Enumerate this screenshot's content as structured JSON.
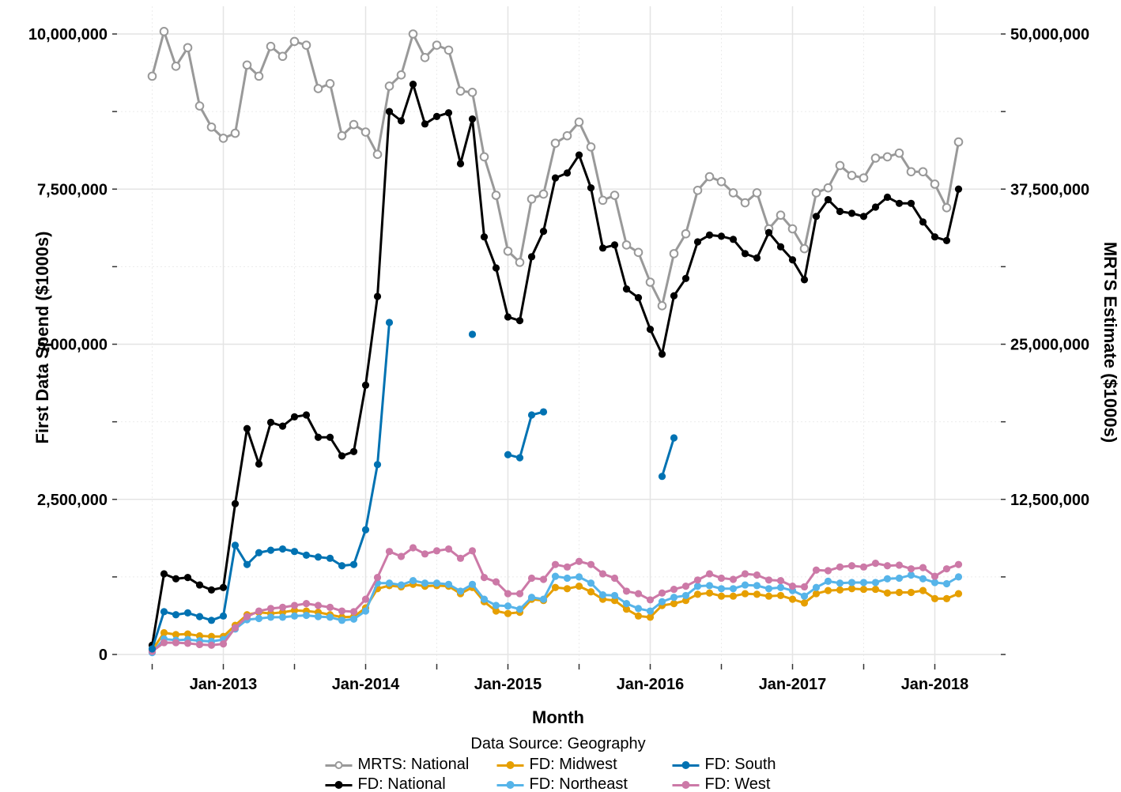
{
  "chart_data": {
    "type": "line",
    "title": "",
    "unit_note": "series values are in millions of the axis units shown ($1000s); MRTS series is read on the right axis, FD series on the left axis",
    "x": {
      "label": "Month",
      "tick_labels": [
        "Jan-2013",
        "Jan-2014",
        "Jan-2015",
        "Jan-2016",
        "Jan-2017",
        "Jan-2018"
      ],
      "tick_month_indices": [
        6,
        18,
        30,
        42,
        54,
        66
      ],
      "minor_tick_month_indices": [
        0,
        12,
        24,
        36,
        48,
        60
      ],
      "months": [
        "Jul-2012",
        "Aug-2012",
        "Sep-2012",
        "Oct-2012",
        "Nov-2012",
        "Dec-2012",
        "Jan-2013",
        "Feb-2013",
        "Mar-2013",
        "Apr-2013",
        "May-2013",
        "Jun-2013",
        "Jul-2013",
        "Aug-2013",
        "Sep-2013",
        "Oct-2013",
        "Nov-2013",
        "Dec-2013",
        "Jan-2014",
        "Feb-2014",
        "Mar-2014",
        "Apr-2014",
        "May-2014",
        "Jun-2014",
        "Jul-2014",
        "Aug-2014",
        "Sep-2014",
        "Oct-2014",
        "Nov-2014",
        "Dec-2014",
        "Jan-2015",
        "Feb-2015",
        "Mar-2015",
        "Apr-2015",
        "May-2015",
        "Jun-2015",
        "Jul-2015",
        "Aug-2015",
        "Sep-2015",
        "Oct-2015",
        "Nov-2015",
        "Dec-2015",
        "Jan-2016",
        "Feb-2016",
        "Mar-2016",
        "Apr-2016",
        "May-2016",
        "Jun-2016",
        "Jul-2016",
        "Aug-2016",
        "Sep-2016",
        "Oct-2016",
        "Nov-2016",
        "Dec-2016",
        "Jan-2017",
        "Feb-2017",
        "Mar-2017",
        "Apr-2017",
        "May-2017",
        "Jun-2017",
        "Jul-2017",
        "Aug-2017",
        "Sep-2017",
        "Oct-2017",
        "Nov-2017",
        "Dec-2017",
        "Jan-2018",
        "Feb-2018",
        "Mar-2018"
      ]
    },
    "y_left": {
      "label": "First Data Spend ($1000s)",
      "tick_labels": [
        "0",
        "2,500,000",
        "5,000,000",
        "7,500,000",
        "10,000,000"
      ],
      "tick_values_millions": [
        0,
        2.5,
        5,
        7.5,
        10
      ],
      "minor_tick_values_millions": [
        1.25,
        3.75,
        6.25,
        8.75
      ],
      "range_millions": [
        0,
        10.45
      ]
    },
    "y_right": {
      "label": "MRTS Estimate ($1000s)",
      "tick_labels": [
        "12,500,000",
        "25,000,000",
        "37,500,000",
        "50,000,000"
      ],
      "tick_values_millions": [
        12.5,
        25,
        37.5,
        50
      ],
      "scale_vs_left": 5
    },
    "grid": true,
    "legend": {
      "title": "Data Source: Geography",
      "position": "bottom",
      "order": [
        "MRTS: National",
        "FD: Midwest",
        "FD: South",
        "FD: National",
        "FD: Northeast",
        "FD: West"
      ]
    },
    "series": [
      {
        "name": "MRTS: National",
        "axis": "right",
        "color": "#999999",
        "marker": "open-circle",
        "values_millions": [
          46.6,
          50.2,
          47.4,
          48.9,
          44.2,
          42.5,
          41.6,
          42.0,
          47.5,
          46.6,
          49.0,
          48.2,
          49.4,
          49.1,
          45.6,
          46.0,
          41.8,
          42.7,
          42.1,
          40.3,
          45.8,
          46.7,
          50.0,
          48.1,
          49.1,
          48.7,
          45.4,
          45.3,
          40.1,
          37.0,
          32.5,
          31.6,
          36.7,
          37.1,
          41.2,
          41.8,
          42.9,
          40.9,
          36.6,
          37.0,
          33.0,
          32.4,
          30.0,
          28.1,
          32.3,
          33.9,
          37.4,
          38.5,
          38.1,
          37.2,
          36.4,
          37.2,
          34.3,
          35.4,
          34.3,
          32.7,
          37.2,
          37.6,
          39.4,
          38.6,
          38.4,
          40.0,
          40.1,
          40.4,
          38.9,
          38.9,
          37.9,
          36.0,
          41.3
        ]
      },
      {
        "name": "FD: National",
        "axis": "left",
        "color": "#000000",
        "marker": "filled-circle",
        "values_millions": [
          0.15,
          1.3,
          1.22,
          1.24,
          1.12,
          1.04,
          1.08,
          2.43,
          3.64,
          3.07,
          3.74,
          3.68,
          3.83,
          3.86,
          3.5,
          3.5,
          3.2,
          3.27,
          4.34,
          5.77,
          8.75,
          8.6,
          9.19,
          8.55,
          8.67,
          8.73,
          7.91,
          8.63,
          6.73,
          6.23,
          5.44,
          5.38,
          6.41,
          6.82,
          7.68,
          7.76,
          8.05,
          7.52,
          6.55,
          6.6,
          5.89,
          5.75,
          5.24,
          4.84,
          5.78,
          6.06,
          6.65,
          6.76,
          6.74,
          6.69,
          6.46,
          6.39,
          6.8,
          6.57,
          6.36,
          6.04,
          7.06,
          7.33,
          7.14,
          7.11,
          7.06,
          7.21,
          7.37,
          7.27,
          7.27,
          6.97,
          6.73,
          6.67,
          7.5
        ]
      },
      {
        "name": "FD: Midwest",
        "axis": "left",
        "color": "#E69F00",
        "marker": "filled-circle",
        "values_millions": [
          0.07,
          0.35,
          0.32,
          0.33,
          0.3,
          0.29,
          0.29,
          0.47,
          0.64,
          0.68,
          0.66,
          0.68,
          0.71,
          0.7,
          0.68,
          0.64,
          0.6,
          0.61,
          0.75,
          1.06,
          1.11,
          1.09,
          1.13,
          1.1,
          1.11,
          1.1,
          0.98,
          1.08,
          0.85,
          0.7,
          0.66,
          0.68,
          0.89,
          0.87,
          1.08,
          1.06,
          1.1,
          1.01,
          0.89,
          0.87,
          0.73,
          0.62,
          0.6,
          0.79,
          0.82,
          0.87,
          0.97,
          0.99,
          0.94,
          0.94,
          0.98,
          0.97,
          0.94,
          0.95,
          0.89,
          0.83,
          0.98,
          1.03,
          1.04,
          1.06,
          1.05,
          1.05,
          0.99,
          1.0,
          1.0,
          1.03,
          0.9,
          0.9,
          0.98
        ]
      },
      {
        "name": "FD: Northeast",
        "axis": "left",
        "color": "#56B4E9",
        "marker": "filled-circle",
        "values_millions": [
          0.03,
          0.25,
          0.23,
          0.24,
          0.22,
          0.21,
          0.24,
          0.41,
          0.56,
          0.58,
          0.6,
          0.6,
          0.62,
          0.63,
          0.61,
          0.6,
          0.55,
          0.57,
          0.7,
          1.15,
          1.15,
          1.12,
          1.19,
          1.15,
          1.15,
          1.13,
          1.02,
          1.13,
          0.89,
          0.79,
          0.78,
          0.73,
          0.92,
          0.89,
          1.26,
          1.23,
          1.25,
          1.15,
          0.96,
          0.95,
          0.82,
          0.74,
          0.7,
          0.85,
          0.92,
          0.95,
          1.1,
          1.11,
          1.06,
          1.06,
          1.12,
          1.11,
          1.06,
          1.08,
          1.03,
          0.94,
          1.08,
          1.18,
          1.15,
          1.16,
          1.16,
          1.16,
          1.22,
          1.23,
          1.28,
          1.22,
          1.16,
          1.14,
          1.25
        ]
      },
      {
        "name": "FD: West",
        "axis": "left",
        "color": "#CC79A7",
        "marker": "filled-circle",
        "values_millions": [
          0.05,
          0.19,
          0.19,
          0.18,
          0.16,
          0.15,
          0.17,
          0.43,
          0.61,
          0.7,
          0.74,
          0.76,
          0.79,
          0.82,
          0.79,
          0.76,
          0.7,
          0.69,
          0.89,
          1.24,
          1.66,
          1.58,
          1.72,
          1.62,
          1.67,
          1.7,
          1.55,
          1.67,
          1.24,
          1.17,
          0.98,
          0.98,
          1.23,
          1.21,
          1.45,
          1.41,
          1.5,
          1.45,
          1.3,
          1.23,
          1.02,
          0.98,
          0.88,
          0.99,
          1.05,
          1.1,
          1.2,
          1.3,
          1.23,
          1.21,
          1.3,
          1.28,
          1.2,
          1.19,
          1.1,
          1.09,
          1.36,
          1.35,
          1.41,
          1.43,
          1.41,
          1.47,
          1.43,
          1.44,
          1.38,
          1.4,
          1.26,
          1.38,
          1.45
        ]
      },
      {
        "name": "FD: South",
        "axis": "left",
        "color": "#0072B2",
        "marker": "filled-circle",
        "values_millions": [
          0.09,
          0.69,
          0.64,
          0.67,
          0.61,
          0.55,
          0.62,
          1.76,
          1.45,
          1.64,
          1.68,
          1.7,
          1.66,
          1.6,
          1.57,
          1.55,
          1.43,
          1.45,
          2.01,
          3.06,
          5.35,
          null,
          null,
          null,
          null,
          null,
          null,
          5.16,
          null,
          null,
          3.22,
          3.17,
          3.86,
          3.91,
          null,
          null,
          null,
          null,
          null,
          null,
          null,
          null,
          null,
          2.87,
          3.49,
          null,
          null,
          null,
          null,
          null,
          null,
          null,
          null,
          null,
          null,
          null,
          null,
          null,
          null,
          null,
          null,
          null,
          null,
          null,
          null,
          null,
          null,
          null,
          null
        ]
      }
    ]
  }
}
